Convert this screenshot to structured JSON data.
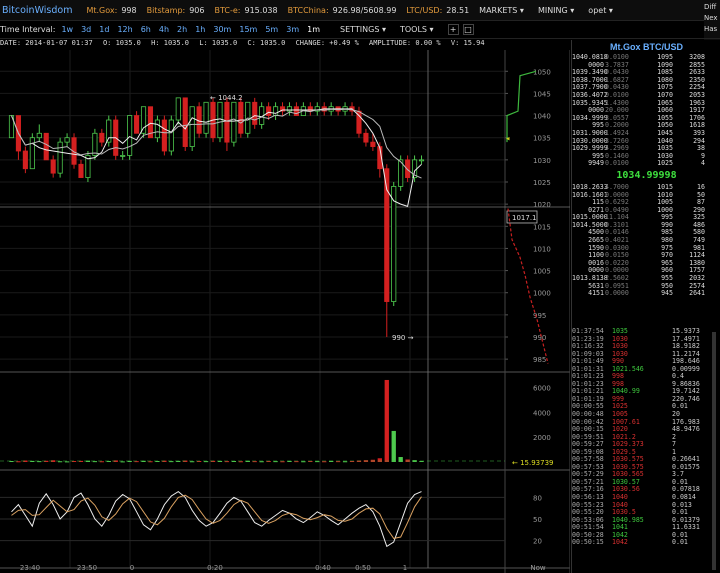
{
  "topbar": {
    "brand": "BitcoinWisdom",
    "exchanges": [
      {
        "name": "Mt.Gox:",
        "price": "998",
        "color": "orange"
      },
      {
        "name": "Bitstamp:",
        "price": "906",
        "color": "orange"
      },
      {
        "name": "BTC-e:",
        "price": "915.038",
        "color": "orange"
      },
      {
        "name": "BTCChina:",
        "price": "926.98/5608.99",
        "color": "orange"
      },
      {
        "name": "LTC/USD:",
        "price": "28.51",
        "color": "orange"
      }
    ],
    "menus": [
      "MARKETS ▾",
      "MINING ▾",
      "opet ▾"
    ],
    "right_cut": [
      "Diff",
      "Nex",
      "Has"
    ]
  },
  "toolbar": {
    "time_interval_label": "Time Interval:",
    "intervals": [
      "1w",
      "3d",
      "1d",
      "12h",
      "6h",
      "4h",
      "2h",
      "1h",
      "30m",
      "15m",
      "5m",
      "3m",
      "1m"
    ],
    "selected_interval": "1m",
    "settings": "SETTINGS ▾",
    "tools": "TOOLS ▾",
    "plus": "+",
    "box": "□"
  },
  "infobar": {
    "date": "DATE: 2014-01-07 01:37",
    "open": "O: 1035.0",
    "high": "H: 1035.0",
    "low": "L: 1035.0",
    "close": "C: 1035.0",
    "change": "CHANGE: +0.49 %",
    "amplitude": "AMPLITUDE: 0.00 %",
    "volume": "V: 15.94"
  },
  "chart_data": {
    "type": "candlestick",
    "price_axis": [
      "1050",
      "1045",
      "1040",
      "1035",
      "1030",
      "1025",
      "1020",
      "1015",
      "1010",
      "1005",
      "1000",
      "995",
      "990",
      "985"
    ],
    "price_range": [
      983,
      1053
    ],
    "current_price_label": "1017.1",
    "high_marker": "1044.2",
    "low_marker": "990",
    "volume_axis": [
      "6000",
      "4000",
      "2000"
    ],
    "volume_range": [
      0,
      7000
    ],
    "volume_label": "15.93739",
    "osc_axis": [
      "80",
      "50",
      "20"
    ],
    "osc_range": [
      0,
      100
    ],
    "time_labels": [
      "23:40",
      "23:50",
      "0",
      "0:20",
      "0:40",
      "0:50",
      "1",
      "Now"
    ],
    "candles": [
      [
        1035,
        1040,
        1035,
        1040
      ],
      [
        1040,
        1040,
        1030,
        1032
      ],
      [
        1032,
        1033,
        1027,
        1028
      ],
      [
        1028,
        1036,
        1028,
        1035
      ],
      [
        1035,
        1038,
        1034,
        1036
      ],
      [
        1036,
        1036,
        1030,
        1030
      ],
      [
        1030,
        1031,
        1026,
        1027
      ],
      [
        1027,
        1035,
        1026,
        1034
      ],
      [
        1034,
        1036,
        1033,
        1035
      ],
      [
        1035,
        1036,
        1028,
        1029
      ],
      [
        1029,
        1030,
        1026,
        1026
      ],
      [
        1026,
        1032,
        1025,
        1031
      ],
      [
        1031,
        1037,
        1030,
        1036
      ],
      [
        1036,
        1037,
        1033,
        1034
      ],
      [
        1034,
        1040,
        1033,
        1039
      ],
      [
        1039,
        1040,
        1030,
        1031
      ],
      [
        1031,
        1032,
        1030,
        1031
      ],
      [
        1031,
        1040,
        1030,
        1040
      ],
      [
        1040,
        1041,
        1036,
        1036
      ],
      [
        1036,
        1042,
        1035,
        1042
      ],
      [
        1042,
        1042,
        1035,
        1035
      ],
      [
        1035,
        1040,
        1034,
        1039
      ],
      [
        1039,
        1040,
        1031,
        1032
      ],
      [
        1032,
        1040,
        1031,
        1039
      ],
      [
        1039,
        1044,
        1038,
        1044
      ],
      [
        1044,
        1044,
        1032,
        1033
      ],
      [
        1033,
        1042,
        1032,
        1042
      ],
      [
        1042,
        1043,
        1035,
        1036
      ],
      [
        1036,
        1043,
        1035,
        1043
      ],
      [
        1043,
        1044,
        1034,
        1035
      ],
      [
        1035,
        1043,
        1034,
        1043
      ],
      [
        1043,
        1044,
        1032,
        1034
      ],
      [
        1034,
        1043,
        1033,
        1043
      ],
      [
        1043,
        1044,
        1035,
        1036
      ],
      [
        1036,
        1043,
        1035,
        1043
      ],
      [
        1043,
        1044,
        1037,
        1038
      ],
      [
        1038,
        1043,
        1037,
        1042
      ],
      [
        1042,
        1043,
        1039,
        1040
      ],
      [
        1040,
        1043,
        1039,
        1042
      ],
      [
        1042,
        1043,
        1040,
        1041
      ],
      [
        1041,
        1043,
        1040,
        1042
      ],
      [
        1042,
        1043,
        1040,
        1040
      ],
      [
        1040,
        1043,
        1040,
        1042
      ],
      [
        1042,
        1043,
        1040,
        1041
      ],
      [
        1041,
        1043,
        1040,
        1042
      ],
      [
        1042,
        1043,
        1040,
        1041
      ],
      [
        1041,
        1043,
        1040,
        1042
      ],
      [
        1042,
        1042,
        1040,
        1041
      ],
      [
        1041,
        1043,
        1040,
        1042
      ],
      [
        1042,
        1043,
        1040,
        1041
      ],
      [
        1041,
        1042,
        1035,
        1036
      ],
      [
        1036,
        1037,
        1033,
        1034
      ],
      [
        1034,
        1036,
        1032,
        1033
      ],
      [
        1033,
        1034,
        1026,
        1028
      ],
      [
        1028,
        1029,
        990,
        998
      ],
      [
        998,
        1025,
        997,
        1024
      ],
      [
        1024,
        1031,
        1023,
        1030
      ],
      [
        1030,
        1031,
        1025,
        1026
      ],
      [
        1026,
        1031,
        1025,
        1030
      ],
      [
        1030,
        1031,
        1029,
        1030
      ]
    ],
    "volumes": [
      80,
      60,
      120,
      90,
      70,
      100,
      140,
      60,
      50,
      80,
      90,
      110,
      70,
      60,
      80,
      130,
      50,
      90,
      70,
      100,
      60,
      80,
      110,
      70,
      90,
      120,
      60,
      80,
      70,
      100,
      90,
      70,
      80,
      60,
      100,
      70,
      60,
      80,
      70,
      60,
      90,
      70,
      60,
      80,
      70,
      60,
      90,
      70,
      60,
      80,
      120,
      150,
      180,
      300,
      6600,
      2500,
      400,
      200,
      150,
      80
    ],
    "osc_k": [
      60,
      70,
      55,
      40,
      72,
      85,
      70,
      50,
      60,
      80,
      86,
      70,
      50,
      40,
      55,
      75,
      84,
      78,
      60,
      42,
      35,
      50,
      70,
      82,
      88,
      80,
      62,
      48,
      40,
      45,
      58,
      72,
      80,
      75,
      60,
      45,
      40,
      48,
      55,
      62,
      58,
      50,
      45,
      52,
      60,
      55,
      48,
      42,
      50,
      58,
      65,
      70,
      60,
      40,
      12,
      18,
      45,
      72,
      84,
      88
    ],
    "osc_d": [
      55,
      62,
      63,
      55,
      56,
      66,
      76,
      68,
      60,
      63,
      75,
      79,
      69,
      53,
      48,
      57,
      71,
      79,
      74,
      60,
      46,
      42,
      51,
      67,
      80,
      83,
      77,
      63,
      50,
      44,
      48,
      58,
      70,
      76,
      72,
      60,
      48,
      44,
      48,
      55,
      58,
      56,
      51,
      49,
      52,
      56,
      54,
      48,
      47,
      50,
      58,
      64,
      65,
      57,
      37,
      23,
      25,
      45,
      67,
      81
    ]
  },
  "orderbook": {
    "title": "Mt.Gox BTC/USD",
    "asks": [
      [
        "1040.0818",
        "0.0100",
        "1095",
        "3208"
      ],
      [
        "0000",
        "3.7837",
        "1090",
        "2855"
      ],
      [
        "1039.3490",
        "0.0430",
        "1085",
        "2633"
      ],
      [
        "1038.7000",
        "1.6827",
        "1080",
        "2350"
      ],
      [
        "1037.7900",
        "0.0430",
        "1075",
        "2254"
      ],
      [
        "1036.4072",
        "0.0100",
        "1070",
        "2053"
      ],
      [
        "1035.9345",
        "1.4300",
        "1065",
        "1963"
      ],
      [
        "0000",
        "20.000",
        "1060",
        "1917"
      ],
      [
        "1034.9999",
        "3.0557",
        "1055",
        "1706"
      ],
      [
        "995",
        "0.2000",
        "1050",
        "1618"
      ],
      [
        "1031.9000",
        "1.4924",
        "1045",
        "393"
      ],
      [
        "1030.0000",
        "3.7260",
        "1040",
        "294"
      ],
      [
        "1029.9999",
        "4.2969",
        "1035",
        "38"
      ],
      [
        "995",
        "0.1460",
        "1030",
        "9"
      ],
      [
        "9949",
        "0.0100",
        "1025",
        "4"
      ]
    ],
    "mid_price": "1034.99998",
    "bids": [
      [
        "1018.2633",
        "4.7000",
        "1015",
        "16"
      ],
      [
        "1016.1601",
        "0.0000",
        "1010",
        "50"
      ],
      [
        "115",
        "0.6292",
        "1005",
        "87"
      ],
      [
        "0271",
        "0.0490",
        "1000",
        "290"
      ],
      [
        "1015.0000",
        "11.104",
        "995",
        "325"
      ],
      [
        "1014.5000",
        "0.3101",
        "990",
        "486"
      ],
      [
        "4500",
        "0.0146",
        "985",
        "580"
      ],
      [
        "2665",
        "0.4021",
        "980",
        "749"
      ],
      [
        "1590",
        "0.0300",
        "975",
        "981"
      ],
      [
        "1100",
        "0.0150",
        "970",
        "1124"
      ],
      [
        "0016",
        "0.0220",
        "965",
        "1380"
      ],
      [
        "0000",
        "0.0000",
        "960",
        "1757"
      ],
      [
        "1013.8138",
        "2.5602",
        "955",
        "2032"
      ],
      [
        "5631",
        "0.0951",
        "950",
        "2574"
      ],
      [
        "4151",
        "0.0000",
        "945",
        "2641"
      ]
    ],
    "trades": [
      [
        "01:37:54",
        "1035",
        "up",
        "15.9373"
      ],
      [
        "01:23:19",
        "1030",
        "dn",
        "17.4971"
      ],
      [
        "01:16:32",
        "1030",
        "dn",
        "18.9182"
      ],
      [
        "01:09:03",
        "1030",
        "dn",
        "11.2174"
      ],
      [
        "01:01:49",
        "990",
        "dn",
        "198.646"
      ],
      [
        "01:01:31",
        "1021.546",
        "up",
        "0.00999"
      ],
      [
        "01:01:23",
        "998",
        "dn",
        "0.4"
      ],
      [
        "01:01:23",
        "998",
        "dn",
        "9.86836"
      ],
      [
        "01:01:21",
        "1040.99",
        "up",
        "19.7142"
      ],
      [
        "01:01:19",
        "999",
        "dn",
        "220.746"
      ],
      [
        "00:00:55",
        "1025",
        "dn",
        "0.01"
      ],
      [
        "00:00:48",
        "1005",
        "dn",
        "20"
      ],
      [
        "00:00:42",
        "1007.61",
        "dn",
        "176.983"
      ],
      [
        "00:00:15",
        "1020",
        "dn",
        "48.9476"
      ],
      [
        "00:59:51",
        "1021.2",
        "dn",
        "2"
      ],
      [
        "00:59:27",
        "1029.373",
        "dn",
        "7"
      ],
      [
        "00:59:08",
        "1029.5",
        "dn",
        "1"
      ],
      [
        "00:57:58",
        "1030.575",
        "dn",
        "0.26641"
      ],
      [
        "00:57:53",
        "1030.575",
        "dn",
        "0.01575"
      ],
      [
        "00:57:29",
        "1030.565",
        "dn",
        "3.7"
      ],
      [
        "00:57:21",
        "1030.57",
        "up",
        "0.01"
      ],
      [
        "00:57:16",
        "1030.56",
        "dn",
        "0.07818"
      ],
      [
        "00:56:13",
        "1040",
        "dn",
        "0.0814"
      ],
      [
        "00:55:23",
        "1040",
        "dn",
        "0.013"
      ],
      [
        "00:55:20",
        "1030.5",
        "dn",
        "0.01"
      ],
      [
        "00:53:06",
        "1040.985",
        "up",
        "0.01379"
      ],
      [
        "00:51:54",
        "1041",
        "up",
        "11.6331"
      ],
      [
        "00:50:28",
        "1042",
        "up",
        "0.01"
      ],
      [
        "00:50:15",
        "1042",
        "dn",
        "0.01"
      ]
    ]
  }
}
